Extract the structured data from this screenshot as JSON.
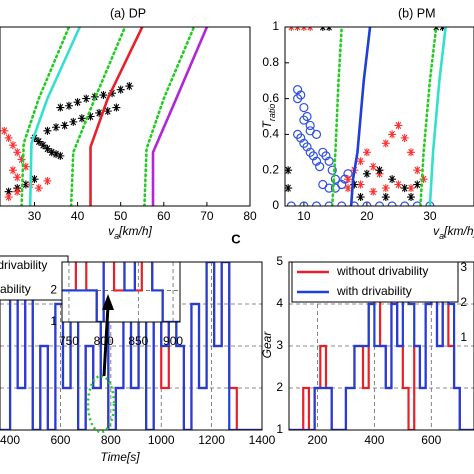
{
  "chart_data": [
    {
      "type": "scatter",
      "title": "(a) DP",
      "xlabel": [
        "v",
        "a",
        "[km/h]"
      ],
      "xlim": [
        22,
        80
      ],
      "ylim": [
        0,
        1
      ],
      "xticks": [
        30,
        40,
        50,
        60,
        70,
        80
      ],
      "series": [
        {
          "style": "asterisk",
          "color": "#000000",
          "x": [
            33,
            35,
            37,
            39,
            41,
            43,
            45,
            47,
            49,
            36,
            38,
            40,
            42,
            44,
            46,
            48,
            50,
            52,
            30,
            31,
            32,
            33,
            34,
            35,
            36,
            24,
            26,
            28,
            30
          ],
          "values": [
            0.42,
            0.44,
            0.45,
            0.47,
            0.49,
            0.5,
            0.52,
            0.53,
            0.55,
            0.55,
            0.56,
            0.58,
            0.6,
            0.61,
            0.62,
            0.63,
            0.65,
            0.67,
            0.38,
            0.36,
            0.34,
            0.32,
            0.3,
            0.29,
            0.28,
            0.08,
            0.1,
            0.12,
            0.15
          ]
        },
        {
          "style": "asterisk",
          "color": "#ff3030",
          "x": [
            23,
            24,
            25,
            26,
            27,
            25,
            26,
            28,
            29,
            31,
            33,
            24,
            26
          ],
          "values": [
            0.42,
            0.38,
            0.34,
            0.3,
            0.26,
            0.2,
            0.16,
            0.22,
            0.12,
            0.1,
            0.14,
            0.05,
            0.08
          ]
        },
        {
          "style": "line",
          "color": "#33e0d0",
          "x": [
            29,
            29.3,
            33,
            40.5
          ],
          "values": [
            0,
            0.35,
            0.6,
            1
          ]
        },
        {
          "style": "line",
          "color": "#e8202a",
          "x": [
            43,
            43,
            47,
            55
          ],
          "values": [
            0,
            0.33,
            0.6,
            1
          ]
        },
        {
          "style": "line",
          "color": "#b026d8",
          "x": [
            57.5,
            57.5,
            62,
            70
          ],
          "values": [
            0,
            0.3,
            0.55,
            1
          ]
        },
        {
          "style": "dotted",
          "color": "#22cc22",
          "x": [
            27,
            27.5,
            31,
            38
          ],
          "values": [
            0,
            0.35,
            0.6,
            1
          ]
        },
        {
          "style": "dotted",
          "color": "#22cc22",
          "x": [
            38.5,
            39,
            44,
            51
          ],
          "values": [
            0,
            0.3,
            0.6,
            1
          ]
        },
        {
          "style": "dotted",
          "color": "#22cc22",
          "x": [
            55.5,
            56,
            60,
            67
          ],
          "values": [
            0,
            0.32,
            0.6,
            1
          ]
        }
      ]
    },
    {
      "type": "scatter",
      "title": "(b) PM",
      "xlabel": [
        "v",
        "a",
        "[km/h]"
      ],
      "ylabel": [
        "T",
        "ratio"
      ],
      "xlim": [
        7,
        37
      ],
      "ylim": [
        0,
        1
      ],
      "xticks": [
        10,
        20,
        30
      ],
      "yticks": [
        0,
        0.2,
        0.4,
        0.6,
        0.8,
        1
      ],
      "series": [
        {
          "style": "circle",
          "color": "#3050e0",
          "x": [
            9,
            9.5,
            10,
            10.5,
            11,
            9,
            9.5,
            10,
            10.5,
            11,
            11.5,
            12,
            12,
            12.5,
            13,
            13.5,
            14,
            14.5,
            15,
            13,
            14,
            15,
            16,
            16.5,
            17,
            9,
            10,
            11
          ],
          "values": [
            0.65,
            0.62,
            0.55,
            0.5,
            0.45,
            0.4,
            0.38,
            0.35,
            0.33,
            0.3,
            0.28,
            0.4,
            0.25,
            0.22,
            0.3,
            0.28,
            0.25,
            0.2,
            0.15,
            0.12,
            0.1,
            0.1,
            0.12,
            0.15,
            0.18,
            0.6,
            0.48,
            0.42
          ]
        },
        {
          "style": "circle",
          "color": "#3050e0",
          "x": [
            8,
            10,
            12,
            14,
            16,
            18,
            20,
            22,
            24,
            26,
            28,
            30
          ],
          "values": [
            0,
            0,
            0,
            0,
            0,
            0,
            0,
            0,
            0,
            0,
            0,
            0
          ]
        },
        {
          "style": "asterisk",
          "color": "#ff3030",
          "x": [
            17,
            18,
            19,
            20,
            21,
            22,
            23,
            24,
            25,
            26,
            27,
            28,
            17,
            19,
            21,
            23,
            25,
            27,
            29,
            8,
            9,
            10,
            11
          ],
          "values": [
            0.15,
            0.2,
            0.25,
            0.3,
            0.22,
            0.18,
            0.35,
            0.4,
            0.45,
            0.38,
            0.3,
            0.2,
            0.1,
            0.12,
            0.08,
            0.1,
            0.12,
            0.1,
            0.15,
            1,
            1,
            1,
            1
          ]
        },
        {
          "style": "asterisk",
          "color": "#000000",
          "x": [
            18,
            20,
            22,
            24,
            26,
            28,
            19,
            23,
            27,
            13,
            14,
            31,
            32,
            7.5,
            7.5
          ],
          "values": [
            0.12,
            0.18,
            0.2,
            0.15,
            0.1,
            0.12,
            0.05,
            0.05,
            0.05,
            1,
            1,
            1,
            1,
            0.2,
            0.1
          ]
        },
        {
          "style": "line",
          "color": "#1f3fd8",
          "x": [
            17.5,
            17.8,
            18.5,
            19.5,
            20.5
          ],
          "values": [
            0,
            0.15,
            0.3,
            0.7,
            1
          ]
        },
        {
          "style": "dotted",
          "color": "#22cc22",
          "x": [
            14.5,
            15,
            15.5,
            16
          ],
          "values": [
            0,
            0.3,
            0.7,
            1
          ]
        },
        {
          "style": "dotted",
          "color": "#22cc22",
          "x": [
            28.5,
            29,
            30,
            31
          ],
          "values": [
            0,
            0.3,
            0.7,
            1
          ]
        },
        {
          "style": "line",
          "color": "#33e0d0",
          "x": [
            30,
            30.5,
            31.5,
            32.5
          ],
          "values": [
            0,
            0.3,
            0.7,
            1
          ]
        }
      ]
    },
    {
      "type": "line",
      "step": true,
      "title": "C",
      "xlabel": [
        "Time[s]"
      ],
      "grid": true,
      "legend": true,
      "xlim": [
        360,
        1400
      ],
      "ylim": [
        1,
        5
      ],
      "xticks": [
        400,
        600,
        800,
        1000,
        1200,
        1400
      ],
      "yticks": [
        1,
        2,
        3,
        4,
        5
      ],
      "x": [
        360,
        400,
        430,
        460,
        490,
        520,
        550,
        580,
        610,
        640,
        670,
        700,
        730,
        760,
        790,
        820,
        850,
        880,
        910,
        940,
        970,
        1000,
        1030,
        1060,
        1090,
        1120,
        1150,
        1180,
        1210,
        1240,
        1270,
        1300,
        1400
      ],
      "series": [
        {
          "name": "without drivability",
          "color": "#e8202a",
          "values": [
            1,
            5,
            2,
            5,
            1,
            3,
            1,
            4,
            2,
            5,
            1,
            3,
            2,
            5,
            1,
            2,
            5,
            2,
            4,
            1,
            5,
            2,
            5,
            3,
            1,
            4,
            2,
            5,
            3,
            5,
            2,
            1,
            1
          ]
        },
        {
          "name": "with drivability",
          "color": "#1f3fd8",
          "values": [
            1,
            5,
            2,
            5,
            1,
            3,
            1,
            4,
            2,
            5,
            1,
            3,
            2,
            5,
            1,
            2,
            5,
            2,
            4,
            1,
            5,
            3,
            5,
            3,
            1,
            4,
            2,
            5,
            3,
            5,
            1,
            1,
            1
          ]
        }
      ]
    },
    {
      "type": "line",
      "step": true,
      "ylabel": [
        "Gear"
      ],
      "grid": true,
      "legend": true,
      "xlim": [
        100,
        750
      ],
      "ylim": [
        1,
        5
      ],
      "xticks": [
        200,
        400,
        600
      ],
      "yticks": [
        1,
        2,
        3,
        4,
        5
      ],
      "x": [
        100,
        150,
        170,
        190,
        210,
        230,
        250,
        300,
        330,
        360,
        380,
        400,
        420,
        440,
        460,
        480,
        500,
        520,
        540,
        560,
        580,
        600,
        620,
        640,
        660,
        680,
        700,
        750
      ],
      "series": [
        {
          "name": "without drivability",
          "color": "#e8202a",
          "values": [
            1,
            2,
            1,
            2,
            3,
            2,
            1,
            2,
            3,
            2,
            4,
            5,
            3,
            2,
            5,
            3,
            2,
            1,
            3,
            2,
            4,
            5,
            3,
            5,
            3,
            2,
            1,
            1
          ]
        },
        {
          "name": "with drivability",
          "color": "#1f3fd8",
          "values": [
            1,
            1,
            1,
            2,
            2,
            2,
            1,
            2,
            3,
            3,
            4,
            3,
            3,
            2,
            4,
            3,
            5,
            4,
            3,
            2,
            4,
            5,
            3,
            5,
            4,
            2,
            1,
            1
          ]
        }
      ]
    },
    {
      "type": "line",
      "step": true,
      "grid": true,
      "xlim": [
        740,
        910
      ],
      "ylim": [
        1,
        2.9
      ],
      "xticks": [
        750,
        800,
        850,
        900
      ],
      "yticks": [
        1,
        2
      ],
      "x": [
        740,
        760,
        775,
        790,
        800,
        815,
        830,
        845,
        855,
        870,
        885,
        910
      ],
      "series": [
        {
          "color": "#e8202a",
          "values": [
            2,
            3,
            2,
            1,
            3,
            2,
            3,
            2,
            3,
            2,
            1,
            1
          ]
        },
        {
          "color": "#1f3fd8",
          "values": [
            2,
            2,
            2,
            1,
            3,
            3,
            2,
            3,
            3,
            2,
            1,
            1
          ]
        }
      ]
    },
    {
      "type": "line",
      "ylim": [
        1,
        3
      ],
      "yticks": [
        1,
        2,
        3
      ]
    }
  ]
}
